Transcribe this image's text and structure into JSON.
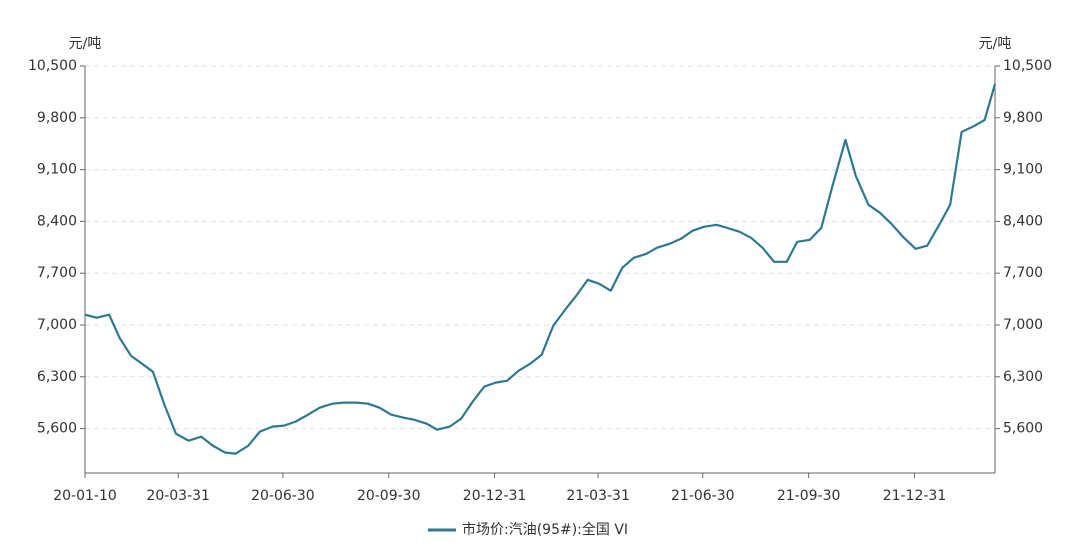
{
  "chart_data": {
    "type": "line",
    "ylabel": "元/吨",
    "y2label": "元/吨",
    "x": [
      "20-01-10",
      "20-01-20",
      "20-01-31",
      "20-02-09",
      "20-02-19",
      "20-03-09",
      "20-03-19",
      "20-03-29",
      "20-04-09",
      "20-04-20",
      "20-04-30",
      "20-05-11",
      "20-05-20",
      "20-05-31",
      "20-06-10",
      "20-06-21",
      "20-07-01",
      "20-07-11",
      "20-07-22",
      "20-08-01",
      "20-08-12",
      "20-08-22",
      "20-09-02",
      "20-09-12",
      "20-09-22",
      "20-10-02",
      "20-10-13",
      "20-10-22",
      "20-11-02",
      "20-11-11",
      "20-11-22",
      "20-12-02",
      "20-12-12",
      "20-12-22",
      "21-01-01",
      "21-01-11",
      "21-01-21",
      "21-01-31",
      "21-02-10",
      "21-02-20",
      "21-03-03",
      "21-03-12",
      "21-03-22",
      "21-04-01",
      "21-04-11",
      "21-04-21",
      "21-05-01",
      "21-05-12",
      "21-05-21",
      "21-06-01",
      "21-06-11",
      "21-06-21",
      "21-07-01",
      "21-07-12",
      "21-07-21",
      "21-08-01",
      "21-08-11",
      "21-08-21",
      "21-08-31",
      "21-09-11",
      "21-09-20",
      "21-10-01",
      "21-10-11",
      "21-10-21",
      "21-11-01",
      "21-11-10",
      "21-11-21",
      "21-12-01",
      "21-12-11",
      "21-12-21",
      "22-01-01",
      "22-01-11",
      "22-01-22",
      "22-01-31",
      "22-02-10",
      "22-02-21",
      "22-03-02",
      "22-03-11"
    ],
    "series": [
      {
        "name": "市场价:汽油(95#):全国 VI",
        "color": "#2e7891",
        "values": [
          7139,
          7098,
          7139,
          6828,
          6585,
          6369,
          5924,
          5532,
          5437,
          5491,
          5370,
          5275,
          5262,
          5370,
          5559,
          5627,
          5640,
          5694,
          5789,
          5883,
          5937,
          5951,
          5951,
          5937,
          5883,
          5789,
          5748,
          5721,
          5667,
          5586,
          5627,
          5735,
          5964,
          6167,
          6221,
          6248,
          6383,
          6477,
          6599,
          6990,
          7220,
          7395,
          7611,
          7557,
          7463,
          7773,
          7908,
          7962,
          8043,
          8097,
          8165,
          8273,
          8327,
          8354,
          8313,
          8259,
          8178,
          8043,
          7854,
          7854,
          8124,
          8151,
          8313,
          8894,
          9501,
          9015,
          8624,
          8516,
          8367,
          8192,
          8030,
          8071,
          8367,
          8624,
          9609,
          9690,
          9771,
          10257
        ]
      }
    ],
    "xlim": [
      "20-01-10",
      "22-03-11"
    ],
    "xticks": [
      "20-01-10",
      "20-03-31",
      "20-06-30",
      "20-09-30",
      "20-12-31",
      "21-03-31",
      "21-06-30",
      "21-09-30",
      "21-12-31"
    ],
    "ylim": [
      5000,
      10500
    ],
    "yticks": [
      {
        "value": 5600,
        "label": "5,600"
      },
      {
        "value": 6300,
        "label": "6,300"
      },
      {
        "value": 7000,
        "label": "7,000"
      },
      {
        "value": 7700,
        "label": "7,700"
      },
      {
        "value": 8400,
        "label": "8,400"
      },
      {
        "value": 9100,
        "label": "9,100"
      },
      {
        "value": 9800,
        "label": "9,800"
      },
      {
        "value": 10500,
        "label": "10,500"
      }
    ],
    "y2lim": [
      5000,
      10500
    ],
    "y2ticks": [
      {
        "value": 5600,
        "label": "5,600"
      },
      {
        "value": 6300,
        "label": "6,300"
      },
      {
        "value": 7000,
        "label": "7,000"
      },
      {
        "value": 7700,
        "label": "7,700"
      },
      {
        "value": 8400,
        "label": "8,400"
      },
      {
        "value": 9100,
        "label": "9,100"
      },
      {
        "value": 9800,
        "label": "9,800"
      },
      {
        "value": 10500,
        "label": "10,500"
      }
    ],
    "grid": true
  }
}
